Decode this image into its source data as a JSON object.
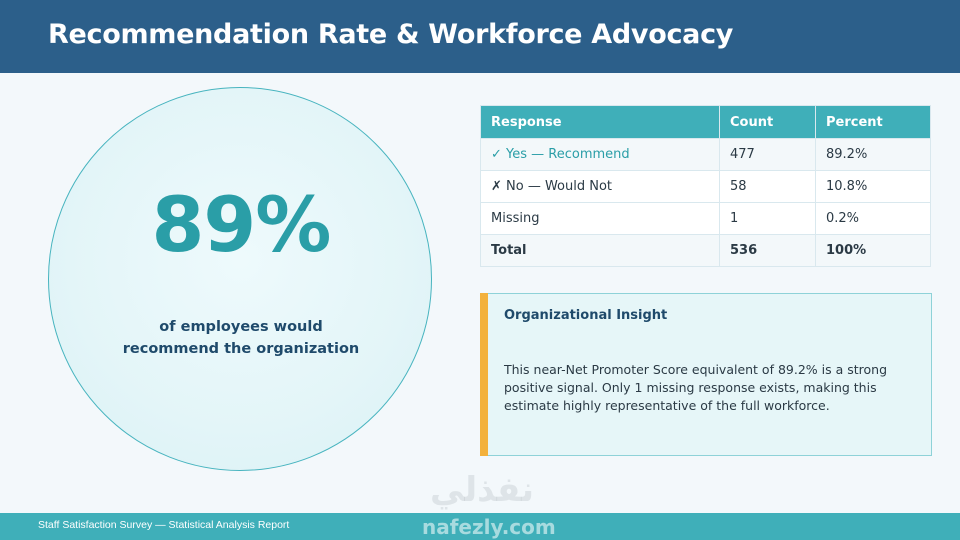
{
  "header": {
    "title": "Recommendation Rate & Workforce Advocacy"
  },
  "highlight": {
    "value": "89%",
    "caption_line1": "of employees would",
    "caption_line2": "recommend the organization"
  },
  "table": {
    "headers": [
      "Response",
      "Count",
      "Percent"
    ],
    "rows": [
      {
        "response": "✓ Yes — Recommend",
        "count": "477",
        "percent": "89.2%"
      },
      {
        "response": "✗ No — Would Not",
        "count": "58",
        "percent": "10.8%"
      },
      {
        "response": "Missing",
        "count": "1",
        "percent": "0.2%"
      },
      {
        "response": "Total",
        "count": "536",
        "percent": "100%"
      }
    ]
  },
  "insight": {
    "title": "Organizational Insight",
    "body": "This near-Net Promoter Score equivalent of 89.2% is a strong positive signal. Only 1 missing response exists, making this estimate highly representative of the full workforce."
  },
  "footer": {
    "text": "Staff Satisfaction Survey — Statistical Analysis Report"
  },
  "watermark": {
    "arabic": "نفذلي",
    "latin": "nafezly.com"
  },
  "colors": {
    "header": "#2c5f8a",
    "accent": "#3fafb9",
    "highlight": "#2a9ea7",
    "insight_bar": "#f3b13c"
  }
}
